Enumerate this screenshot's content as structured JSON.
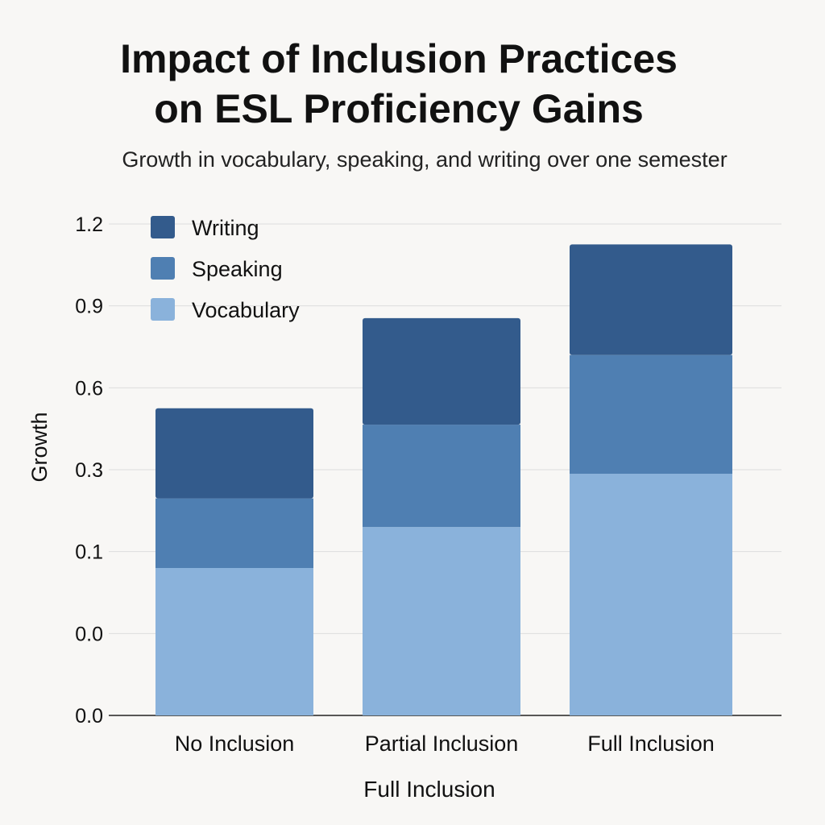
{
  "chart_data": {
    "type": "bar",
    "stacked": true,
    "title": "Impact of Inclusion Practices on ESL Proficiency Gains",
    "title_lines": [
      "Impact of Inclusion Practices",
      "on ESL Proficiency Gains"
    ],
    "subtitle": "Growth in vocabulary, speaking, and writing over one semester",
    "xlabel": "Full Inclusion",
    "ylabel": "Growth",
    "ylim": [
      0,
      1.2
    ],
    "y_tick_labels": [
      "0.0",
      "0.0",
      "0.1",
      "0.3",
      "0.6",
      "0.9",
      "1.2"
    ],
    "grid": true,
    "legend_position": "top-left",
    "categories": [
      "No Inclusion",
      "Partial Inclusion",
      "Full Inclusion"
    ],
    "series": [
      {
        "name": "Vocabulary",
        "color": "#8ab2db",
        "values": [
          0.36,
          0.46,
          0.59
        ]
      },
      {
        "name": "Speaking",
        "color": "#4f7fb2",
        "values": [
          0.17,
          0.25,
          0.29
        ]
      },
      {
        "name": "Writing",
        "color": "#335b8c",
        "values": [
          0.22,
          0.26,
          0.27
        ]
      }
    ]
  }
}
